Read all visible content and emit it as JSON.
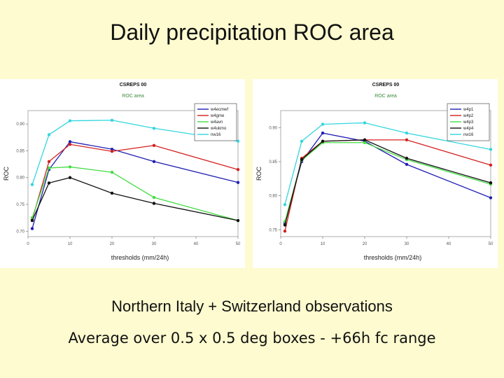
{
  "slide": {
    "title": "Daily precipitation ROC area",
    "caption_line1": "Northern Italy + Switzerland observations",
    "caption_line2": "Average over 0.5 x 0.5 deg boxes - +66h fc range"
  },
  "chart_data": [
    {
      "type": "line",
      "title": "CSREPS 00",
      "subtitle": "ROC area",
      "xlabel": "thresholds (mm/24h)",
      "ylabel": "ROC",
      "xlim": [
        0,
        50
      ],
      "ylim": [
        0.69,
        0.925
      ],
      "xticks": [
        0,
        10,
        20,
        30,
        40,
        50
      ],
      "xtick_labels": [
        "0",
        "10",
        "20",
        "30",
        "40",
        "50"
      ],
      "yticks": [
        0.7,
        0.75,
        0.8,
        0.85,
        0.9
      ],
      "ytick_labels": [
        "0.70",
        "0.75",
        "0.80",
        "0.85",
        "0.90"
      ],
      "legend_position": "top-right",
      "x": [
        1,
        5,
        10,
        20,
        30,
        50
      ],
      "series": [
        {
          "name": "w4ecmwf",
          "color": "#1f1fb4",
          "values": [
            0.705,
            0.815,
            0.867,
            0.853,
            0.83,
            0.791
          ]
        },
        {
          "name": "w4gme",
          "color": "#d42020",
          "values": [
            0.722,
            0.83,
            0.862,
            0.849,
            0.86,
            0.815
          ]
        },
        {
          "name": "w4avn",
          "color": "#44dd44",
          "values": [
            0.725,
            0.818,
            0.82,
            0.81,
            0.763,
            0.72
          ]
        },
        {
          "name": "w4ukmo",
          "color": "#111111",
          "values": [
            0.72,
            0.79,
            0.8,
            0.771,
            0.752,
            0.72
          ]
        },
        {
          "name": "nw16",
          "color": "#33d6dd",
          "values": [
            0.787,
            0.88,
            0.906,
            0.907,
            0.892,
            0.868
          ]
        }
      ]
    },
    {
      "type": "line",
      "title": "CSREPS 00",
      "subtitle": "ROC area",
      "xlabel": "thresholds (mm/24h)",
      "ylabel": "ROC",
      "xlim": [
        0,
        50
      ],
      "ylim": [
        0.74,
        0.925
      ],
      "xticks": [
        0,
        10,
        20,
        30,
        40,
        50
      ],
      "xtick_labels": [
        "0",
        "10",
        "20",
        "30",
        "40",
        "50"
      ],
      "yticks": [
        0.75,
        0.8,
        0.85,
        0.9
      ],
      "ytick_labels": [
        "0.75",
        "0.80",
        "0.85",
        "0.90"
      ],
      "legend_position": "top-right",
      "x": [
        1,
        5,
        10,
        20,
        30,
        50
      ],
      "series": [
        {
          "name": "w4p1",
          "color": "#1f1fb4",
          "values": [
            0.76,
            0.85,
            0.892,
            0.88,
            0.846,
            0.797
          ]
        },
        {
          "name": "w4p2",
          "color": "#d42020",
          "values": [
            0.748,
            0.855,
            0.88,
            0.882,
            0.882,
            0.845
          ]
        },
        {
          "name": "w4p3",
          "color": "#44dd44",
          "values": [
            0.762,
            0.852,
            0.878,
            0.878,
            0.853,
            0.817
          ]
        },
        {
          "name": "w4p4",
          "color": "#111111",
          "values": [
            0.757,
            0.853,
            0.88,
            0.882,
            0.855,
            0.819
          ]
        },
        {
          "name": "nw16",
          "color": "#33d6dd",
          "values": [
            0.787,
            0.88,
            0.905,
            0.907,
            0.892,
            0.868
          ]
        }
      ]
    }
  ]
}
